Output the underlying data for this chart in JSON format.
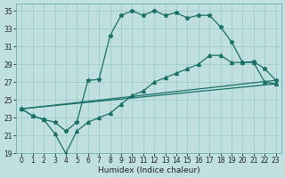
{
  "xlabel": "Humidex (Indice chaleur)",
  "xlim": [
    -0.5,
    23.5
  ],
  "ylim": [
    19,
    35.8
  ],
  "xticks": [
    0,
    1,
    2,
    3,
    4,
    5,
    6,
    7,
    8,
    9,
    10,
    11,
    12,
    13,
    14,
    15,
    16,
    17,
    18,
    19,
    20,
    21,
    22,
    23
  ],
  "yticks": [
    19,
    21,
    23,
    25,
    27,
    29,
    31,
    33,
    35
  ],
  "bg_color": "#bfe0df",
  "grid_color": "#9ac8c8",
  "line_color": "#1a7068",
  "s1_x": [
    0,
    1,
    2,
    3,
    4,
    5,
    6,
    7,
    8,
    9,
    10,
    11,
    12,
    13,
    14,
    15,
    16,
    17,
    18,
    19,
    20,
    21,
    22,
    23
  ],
  "s1_y": [
    24.0,
    23.2,
    22.8,
    22.5,
    21.5,
    22.5,
    27.2,
    27.3,
    32.2,
    34.5,
    35.0,
    34.5,
    35.0,
    34.5,
    34.8,
    34.2,
    34.5,
    34.5,
    33.2,
    31.5,
    29.2,
    29.3,
    28.5,
    27.2
  ],
  "s2_x": [
    0,
    1,
    2,
    3,
    4,
    5,
    6,
    7,
    8,
    9,
    10,
    11,
    12,
    13,
    14,
    15,
    16,
    17,
    18,
    19,
    20,
    21,
    22,
    23
  ],
  "s2_y": [
    24.0,
    23.2,
    22.8,
    21.2,
    19.0,
    21.5,
    22.5,
    23.0,
    23.5,
    24.5,
    25.5,
    26.0,
    27.0,
    27.5,
    28.0,
    28.5,
    29.0,
    30.0,
    30.0,
    29.2,
    29.2,
    29.2,
    27.0,
    26.8
  ],
  "trend1_x": [
    0,
    23
  ],
  "trend1_y": [
    24.0,
    27.2
  ],
  "trend2_x": [
    0,
    23
  ],
  "trend2_y": [
    24.0,
    26.8
  ],
  "lw": 0.9,
  "ms_star": 3.5,
  "ms_tri": 2.8,
  "tick_fontsize": 5.5,
  "xlabel_fontsize": 6.5
}
